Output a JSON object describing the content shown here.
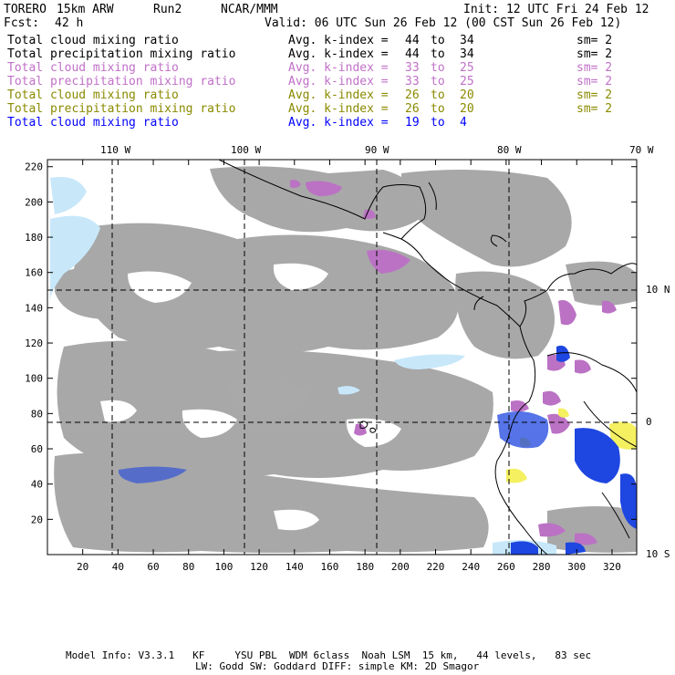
{
  "header": {
    "model": "TORERO",
    "resolution": "15km ARW",
    "run": "Run2",
    "org": "NCAR/MMM",
    "init": "Init: 12 UTC Fri 24 Feb 12",
    "fcst_label": "Fcst:",
    "fcst_value": "42 h",
    "valid": "Valid: 06 UTC Sun 26 Feb 12 (00 CST Sun 26 Feb 12)"
  },
  "legend": [
    {
      "field": "Total cloud mixing ratio",
      "avg": "Avg. k-index =",
      "from": "44",
      "to_word": "to",
      "to": "34",
      "sm": "sm= 2",
      "color": "#000000"
    },
    {
      "field": "Total precipitation mixing ratio",
      "avg": "Avg. k-index =",
      "from": "44",
      "to_word": "to",
      "to": "34",
      "sm": "sm= 2",
      "color": "#000000"
    },
    {
      "field": "Total cloud mixing ratio",
      "avg": "Avg. k-index =",
      "from": "33",
      "to_word": "to",
      "to": "25",
      "sm": "sm= 2",
      "color": "#c070c8"
    },
    {
      "field": "Total precipitation mixing ratio",
      "avg": "Avg. k-index =",
      "from": "33",
      "to_word": "to",
      "to": "25",
      "sm": "sm= 2",
      "color": "#c070c8"
    },
    {
      "field": "Total cloud mixing ratio",
      "avg": "Avg. k-index =",
      "from": "26",
      "to_word": "to",
      "to": "20",
      "sm": "sm= 2",
      "color": "#8a8a00"
    },
    {
      "field": "Total precipitation mixing ratio",
      "avg": "Avg. k-index =",
      "from": "26",
      "to_word": "to",
      "to": "20",
      "sm": "sm= 2",
      "color": "#8a8a00"
    },
    {
      "field": "Total cloud mixing ratio",
      "avg": "Avg. k-index =",
      "from": "19",
      "to_word": "to",
      "to": "4",
      "sm": "",
      "color": "#0000ff"
    }
  ],
  "axes": {
    "x_ticks": [
      "20",
      "40",
      "60",
      "80",
      "100",
      "120",
      "140",
      "160",
      "180",
      "200",
      "220",
      "240",
      "260",
      "280",
      "300",
      "320"
    ],
    "y_ticks": [
      "20",
      "40",
      "60",
      "80",
      "100",
      "120",
      "140",
      "160",
      "180",
      "200",
      "220"
    ],
    "lon_labels": [
      "110 W",
      "100 W",
      "90 W",
      "80 W",
      "70 W"
    ],
    "lat_labels": [
      "10 N",
      "0",
      "10 S"
    ]
  },
  "footer": {
    "line1": "Model Info: V3.3.1   KF     YSU PBL  WDM 6class  Noah LSM  15 km,   44 levels,   83 sec",
    "line2": "LW: Godd SW: Goddard DIFF: simple KM: 2D Smagor"
  },
  "colors": {
    "gray_cloud": "#a8a8a8",
    "light_blue": "#c8e8fa",
    "purple": "#bb72c4",
    "yellow": "#f4f060",
    "blue": "#1234d8",
    "dark_blue": "#0000d0"
  }
}
